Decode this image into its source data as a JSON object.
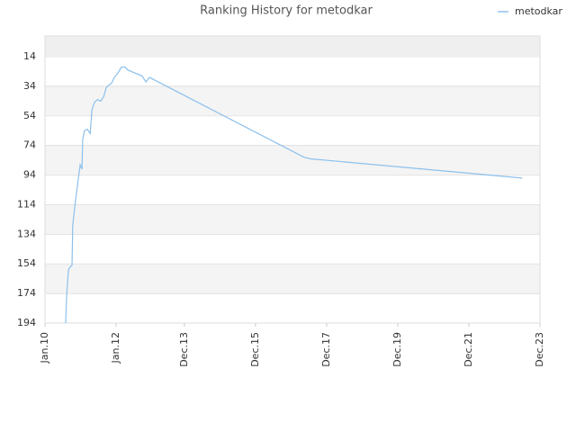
{
  "chart_data": {
    "type": "line",
    "title": "Ranking History for metodkar",
    "series": [
      {
        "name": "metodkar",
        "color": "#8cc0ec",
        "x": [
          2010.58,
          2010.61,
          2010.66,
          2010.71,
          2010.76,
          2010.78,
          2010.84,
          2010.89,
          2010.94,
          2010.99,
          2011.04,
          2011.06,
          2011.11,
          2011.19,
          2011.27,
          2011.32,
          2011.39,
          2011.47,
          2011.57,
          2011.65,
          2011.72,
          2011.8,
          2011.87,
          2011.95,
          2012.05,
          2012.15,
          2012.25,
          2012.33,
          2012.73,
          2012.84,
          2012.94,
          2017.29,
          2017.47,
          2023.42
        ],
        "values": [
          194,
          175,
          158,
          156,
          155,
          128,
          115,
          105,
          96,
          87,
          90,
          70,
          64,
          63,
          66,
          50,
          45,
          43,
          44,
          41,
          35,
          33,
          32,
          28,
          25,
          21,
          21,
          23,
          27,
          31,
          28,
          82,
          83,
          96
        ]
      }
    ],
    "xlim": [
      2010,
      2023.92
    ],
    "xticks": [
      {
        "value": 2010,
        "label": "Jan.10"
      },
      {
        "value": 2012,
        "label": "Jan.12"
      },
      {
        "value": 2013.92,
        "label": "Dec.13"
      },
      {
        "value": 2015.92,
        "label": "Dec.15"
      },
      {
        "value": 2017.92,
        "label": "Dec.17"
      },
      {
        "value": 2019.92,
        "label": "Dec.19"
      },
      {
        "value": 2021.92,
        "label": "Dec.21"
      },
      {
        "value": 2023.92,
        "label": "Dec.23"
      }
    ],
    "ylim": [
      194,
      0
    ],
    "yticks": [
      14,
      34,
      54,
      74,
      94,
      114,
      134,
      154,
      174,
      194
    ],
    "grid": true,
    "legend": "top-right"
  }
}
